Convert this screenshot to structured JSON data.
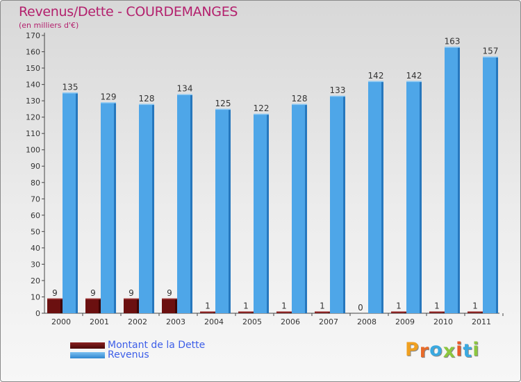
{
  "title": "Revenus/Dette - COURDEMANGES",
  "subtitle": "(en milliers d'€)",
  "colors": {
    "dette_front": "#6b1010",
    "dette_top": "#a23a3a",
    "dette_side": "#3d0606",
    "revenus_front": "#4ea6e8",
    "revenus_top": "#8ec9f3",
    "revenus_side": "#2677bd",
    "title": "#b3206d",
    "legend_text": "#3d5ee8"
  },
  "legend": [
    {
      "label": "Montant de la Dette",
      "color": "#6b1010"
    },
    {
      "label": "Revenus",
      "color": "#4ea6e8"
    }
  ],
  "logo": {
    "text": "Proxiti",
    "letters": [
      {
        "char": "P",
        "color": "#f0a020"
      },
      {
        "char": "r",
        "color": "#e86b2a"
      },
      {
        "char": "o",
        "color": "#3aa9e0"
      },
      {
        "char": "x",
        "color": "#8cc63f"
      },
      {
        "char": "i",
        "color": "#e85a2a"
      },
      {
        "char": "t",
        "color": "#3aa9e0"
      },
      {
        "char": "i",
        "color": "#8cc63f"
      }
    ]
  },
  "chart_data": {
    "type": "bar",
    "title": "Revenus/Dette - COURDEMANGES",
    "subtitle": "(en milliers d'€)",
    "categories": [
      "2000",
      "2001",
      "2002",
      "2003",
      "2004",
      "2005",
      "2006",
      "2007",
      "2008",
      "2009",
      "2010",
      "2011"
    ],
    "series": [
      {
        "name": "Montant de la Dette",
        "values": [
          9,
          9,
          9,
          9,
          1,
          1,
          1,
          1,
          0,
          1,
          1,
          1
        ]
      },
      {
        "name": "Revenus",
        "values": [
          135,
          129,
          128,
          134,
          125,
          122,
          128,
          133,
          142,
          142,
          163,
          157
        ]
      }
    ],
    "ylim": [
      0,
      170
    ],
    "yticks": [
      0,
      10,
      20,
      30,
      40,
      50,
      60,
      70,
      80,
      90,
      100,
      110,
      120,
      130,
      140,
      150,
      160,
      170
    ],
    "grid": false,
    "legend_position": "bottom-left"
  }
}
